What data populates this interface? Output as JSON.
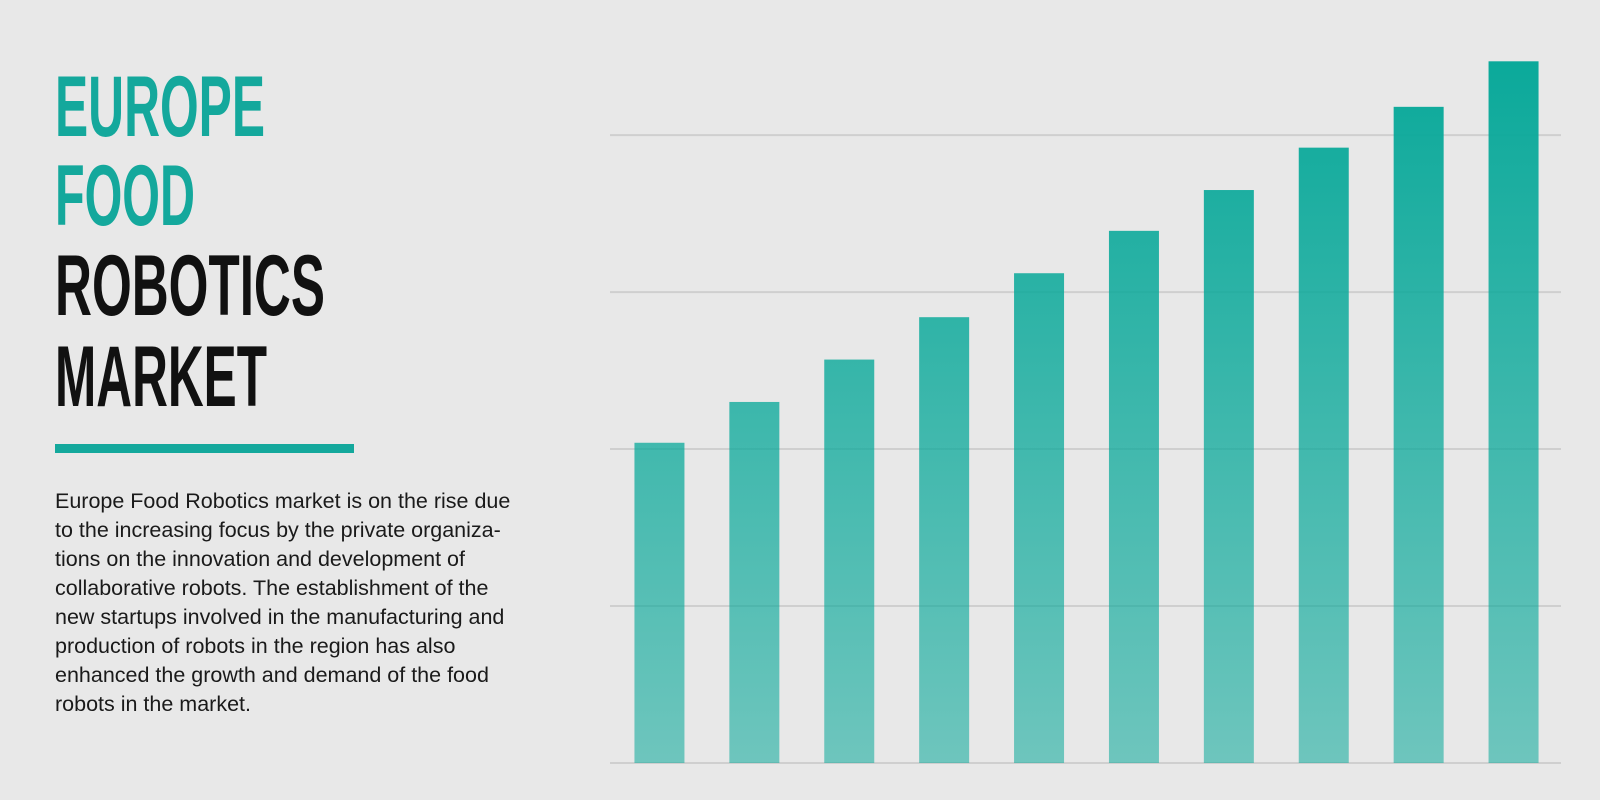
{
  "header": {
    "lines": [
      {
        "text": "EUROPE",
        "color": "#14a89c"
      },
      {
        "text": "FOOD",
        "color": "#14a89c"
      },
      {
        "text": "ROBOTICS",
        "color": "#111111"
      },
      {
        "text": "MARKET",
        "color": "#111111"
      }
    ],
    "rule_color": "#14a89c"
  },
  "description": {
    "lines": [
      "Europe Food Robotics market is on the rise due",
      "to the increasing focus by the private organiza-",
      "tions on the innovation and development of",
      "collaborative robots. The establishment of the",
      "new startups involved in the manufacturing and",
      "production of robots in the region has also",
      "enhanced the growth and demand of the food",
      "robots in the market."
    ]
  },
  "chart_data": {
    "type": "bar",
    "categories": [
      null,
      null,
      null,
      null,
      null,
      null,
      null,
      null,
      null,
      null
    ],
    "values": [
      2.04,
      2.3,
      2.57,
      2.84,
      3.12,
      3.39,
      3.65,
      3.92,
      4.18,
      4.47
    ],
    "color": "#0aa99a",
    "ylim": [
      0,
      4.5
    ],
    "yticks": [
      0,
      1,
      2,
      3,
      4
    ],
    "grid": true
  }
}
